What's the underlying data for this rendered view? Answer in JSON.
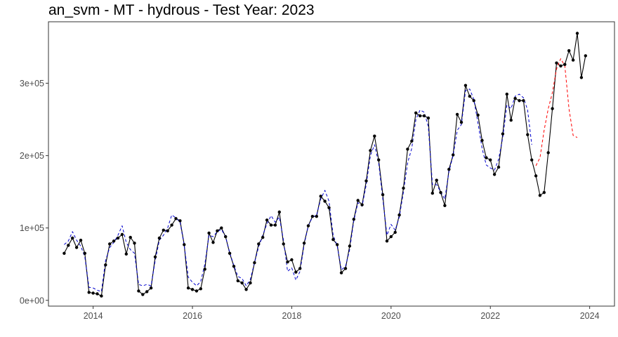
{
  "chart_data": {
    "type": "line",
    "title": "an_svm - MT - hydrous - Test Year: 2023",
    "xlabel": "",
    "ylabel": "",
    "x_start": "2013-06",
    "x_frequency": "monthly",
    "xlim": [
      2013.1,
      2024.5
    ],
    "ylim": [
      -8000,
      385000
    ],
    "x_ticks": [
      2014,
      2016,
      2018,
      2020,
      2022,
      2024
    ],
    "x_tick_labels": [
      "2014",
      "2016",
      "2018",
      "2020",
      "2022",
      "2024"
    ],
    "y_ticks": [
      0,
      100000,
      200000,
      300000
    ],
    "y_tick_labels": [
      "0e+00",
      "1e+05",
      "2e+05",
      "3e+05"
    ],
    "grid": false,
    "legend": "none",
    "series": [
      {
        "role": "observed",
        "color": "#000000",
        "style": "solid-with-points",
        "values": [
          65000,
          76000,
          86000,
          73000,
          83000,
          65000,
          11000,
          10000,
          9000,
          6000,
          49000,
          78000,
          82000,
          86000,
          91000,
          64000,
          87000,
          79000,
          13000,
          8000,
          12000,
          17000,
          60000,
          86000,
          97000,
          96000,
          104000,
          113000,
          110000,
          77000,
          17000,
          15000,
          13000,
          16000,
          43000,
          93000,
          80000,
          96000,
          100000,
          88000,
          65000,
          47000,
          27000,
          24000,
          15000,
          24000,
          52000,
          78000,
          87000,
          111000,
          104000,
          104000,
          122000,
          78000,
          53000,
          56000,
          39000,
          44000,
          79000,
          103000,
          116000,
          116000,
          144000,
          137000,
          128000,
          84000,
          77000,
          38000,
          44000,
          75000,
          112000,
          138000,
          132000,
          165000,
          207000,
          227000,
          194000,
          146000,
          82000,
          88000,
          94000,
          118000,
          155000,
          209000,
          220000,
          259000,
          255000,
          255000,
          252000,
          148000,
          166000,
          149000,
          131000,
          181000,
          201000,
          257000,
          246000,
          297000,
          282000,
          276000,
          256000,
          221000,
          197000,
          194000,
          174000,
          184000,
          230000,
          285000,
          249000,
          279000,
          276000,
          276000,
          229000,
          194000,
          172000,
          145000,
          149000,
          204000,
          265000,
          328000,
          324000,
          326000,
          345000,
          332000,
          369000,
          308000,
          338000
        ]
      },
      {
        "role": "fitted",
        "color": "#0000cc",
        "style": "dashed",
        "values": [
          77000,
          82000,
          95000,
          83000,
          75000,
          60000,
          18000,
          17000,
          14000,
          12000,
          55000,
          73000,
          80000,
          90000,
          103000,
          80000,
          70000,
          65000,
          22000,
          20000,
          22000,
          20000,
          55000,
          83000,
          90000,
          100000,
          118000,
          114000,
          108000,
          76000,
          32000,
          25000,
          20000,
          26000,
          50000,
          90000,
          88000,
          95000,
          98000,
          88000,
          66000,
          48000,
          33000,
          30000,
          20000,
          29000,
          52000,
          74000,
          90000,
          106000,
          117000,
          108000,
          115000,
          83000,
          40000,
          45000,
          28000,
          40000,
          77000,
          103000,
          115000,
          118000,
          140000,
          152000,
          137000,
          90000,
          75000,
          42000,
          47000,
          70000,
          110000,
          135000,
          130000,
          160000,
          200000,
          215000,
          190000,
          140000,
          90000,
          105000,
          97000,
          115000,
          150000,
          190000,
          210000,
          250000,
          263000,
          260000,
          240000,
          160000,
          160000,
          150000,
          140000,
          178000,
          200000,
          235000,
          243000,
          290000,
          292000,
          278000,
          245000,
          210000,
          187000,
          183000,
          180000,
          195000,
          225000,
          270000,
          265000,
          282000,
          285000,
          280000,
          263000,
          215000
        ]
      },
      {
        "role": "forecast",
        "color": "#ff0000",
        "style": "dashed",
        "values": [
          186000,
          197000,
          235000,
          265000,
          287000,
          320000,
          334000,
          324000,
          265000,
          228000,
          225000
        ]
      }
    ],
    "forecast_start_index": 114
  }
}
